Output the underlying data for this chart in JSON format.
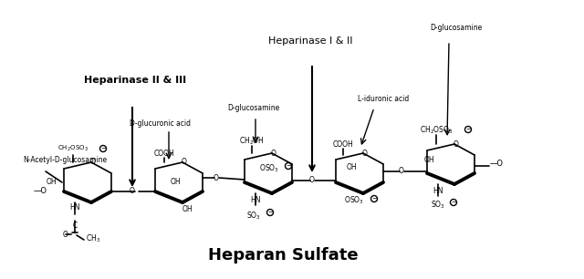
{
  "title": "Heparan Sulfate",
  "title_fontsize": 13,
  "title_bold": true,
  "bg_color": "#ffffff",
  "text_color": "#000000",
  "line_color": "#000000",
  "figsize": [
    6.4,
    3.06
  ],
  "dpi": 100,
  "labels": {
    "hep_II_III": "Heparinase II & III",
    "hep_I_II": "Heparinase I & II",
    "n_acetyl": "N-Acetyl-D-glucosamine",
    "d_glucuronic": "D-glucuronic acid",
    "d_glucosamine_mid": "D-glucosamine",
    "d_glucosamine_right": "D-glucosamine",
    "l_iduronic": "L-iduronic acid"
  }
}
